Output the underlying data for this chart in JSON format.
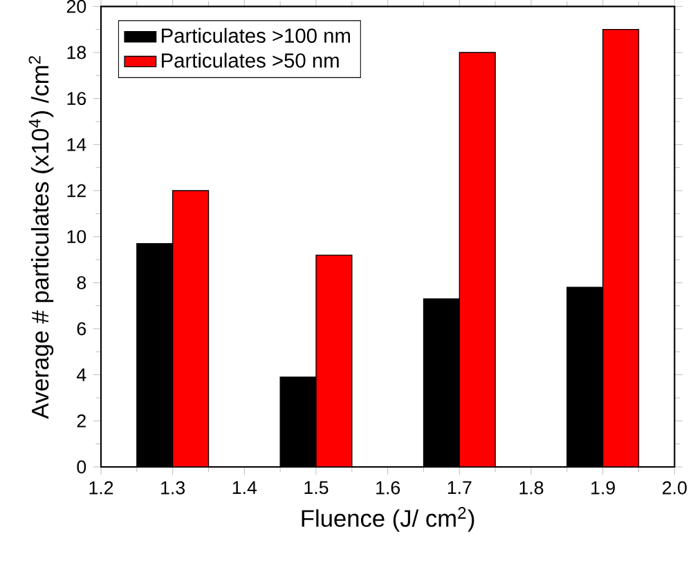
{
  "chart_data": {
    "type": "bar",
    "xlabel": "Fluence (J/ cm$^{2}$)",
    "ylabel": "Average # particulates (x10$^{4}$) /cm$^{2}$",
    "x": [
      1.3,
      1.5,
      1.7,
      1.9
    ],
    "series": [
      {
        "name": "Particulates >100 nm",
        "color": "#000000",
        "values": [
          9.7,
          3.9,
          7.3,
          7.8
        ]
      },
      {
        "name": "Particulates >50 nm",
        "color": "#ff0000",
        "values": [
          12,
          9.2,
          18,
          19
        ]
      }
    ],
    "xlim": [
      1.2,
      2.0
    ],
    "xticks": [
      1.2,
      1.3,
      1.4,
      1.5,
      1.6,
      1.7,
      1.8,
      1.9,
      {
        "value": 2.0,
        "label": "2.0"
      }
    ],
    "ylim": [
      0,
      20
    ],
    "yticks": [
      0,
      2,
      4,
      6,
      8,
      10,
      12,
      14,
      16,
      18,
      20
    ],
    "legend": "top left"
  }
}
